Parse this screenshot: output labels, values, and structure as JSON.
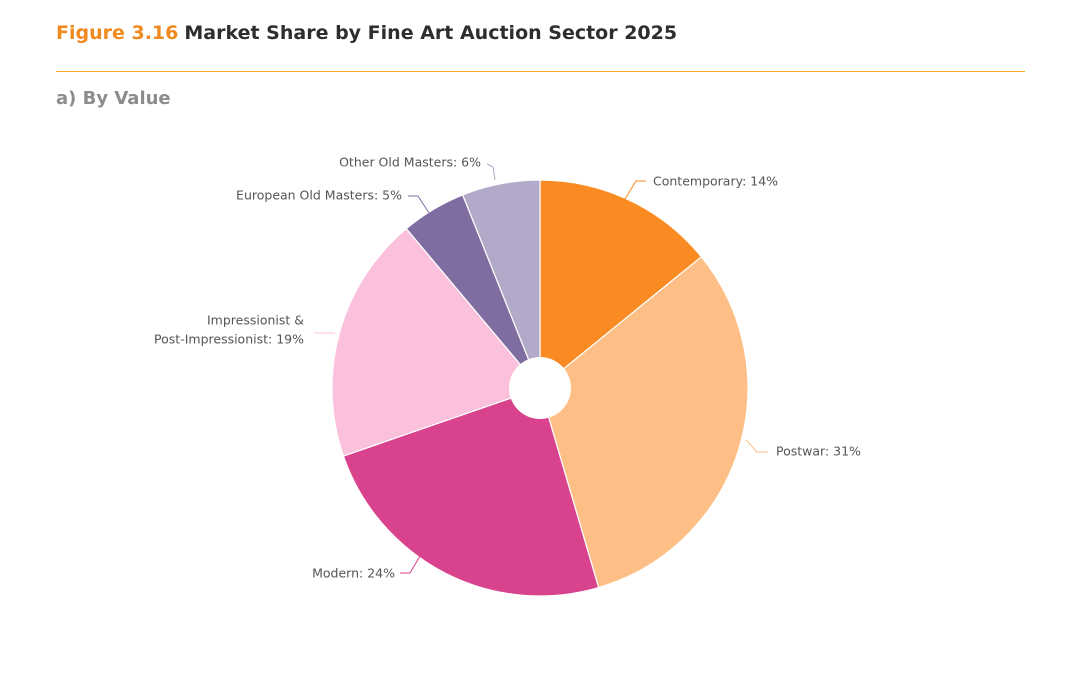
{
  "figure": {
    "label": "Figure 3.16",
    "title": "Market Share by Fine Art Auction Sector 2025",
    "subtitle": "a) By Value",
    "label_color": "#f0891e",
    "title_color": "#2e2e2e",
    "rule_color": "#f5a623"
  },
  "chart_data": {
    "type": "pie",
    "donut_hole": true,
    "unit": "%",
    "slices": [
      {
        "key": "contemporary",
        "label": "Contemporary: 14%",
        "category": "Contemporary",
        "value": 14,
        "color": "#f98b22"
      },
      {
        "key": "postwar",
        "label": "Postwar: 31%",
        "category": "Postwar",
        "value": 31,
        "color": "#fdbf86"
      },
      {
        "key": "modern",
        "label": "Modern: 24%",
        "category": "Modern",
        "value": 24,
        "color": "#d9428d"
      },
      {
        "key": "impressionist",
        "label_lines": [
          "Impressionist &",
          "Post-Impressionist: 19%"
        ],
        "category": "Impressionist & Post-Impressionist",
        "value": 19,
        "color": "#fbc0db"
      },
      {
        "key": "european-old-masters",
        "label": "European Old Masters: 5%",
        "category": "European Old Masters",
        "value": 5,
        "color": "#7f6da2"
      },
      {
        "key": "other-old-masters",
        "label": "Other Old Masters: 6%",
        "category": "Other Old Masters",
        "value": 6,
        "color": "#b3a9c9"
      }
    ]
  }
}
